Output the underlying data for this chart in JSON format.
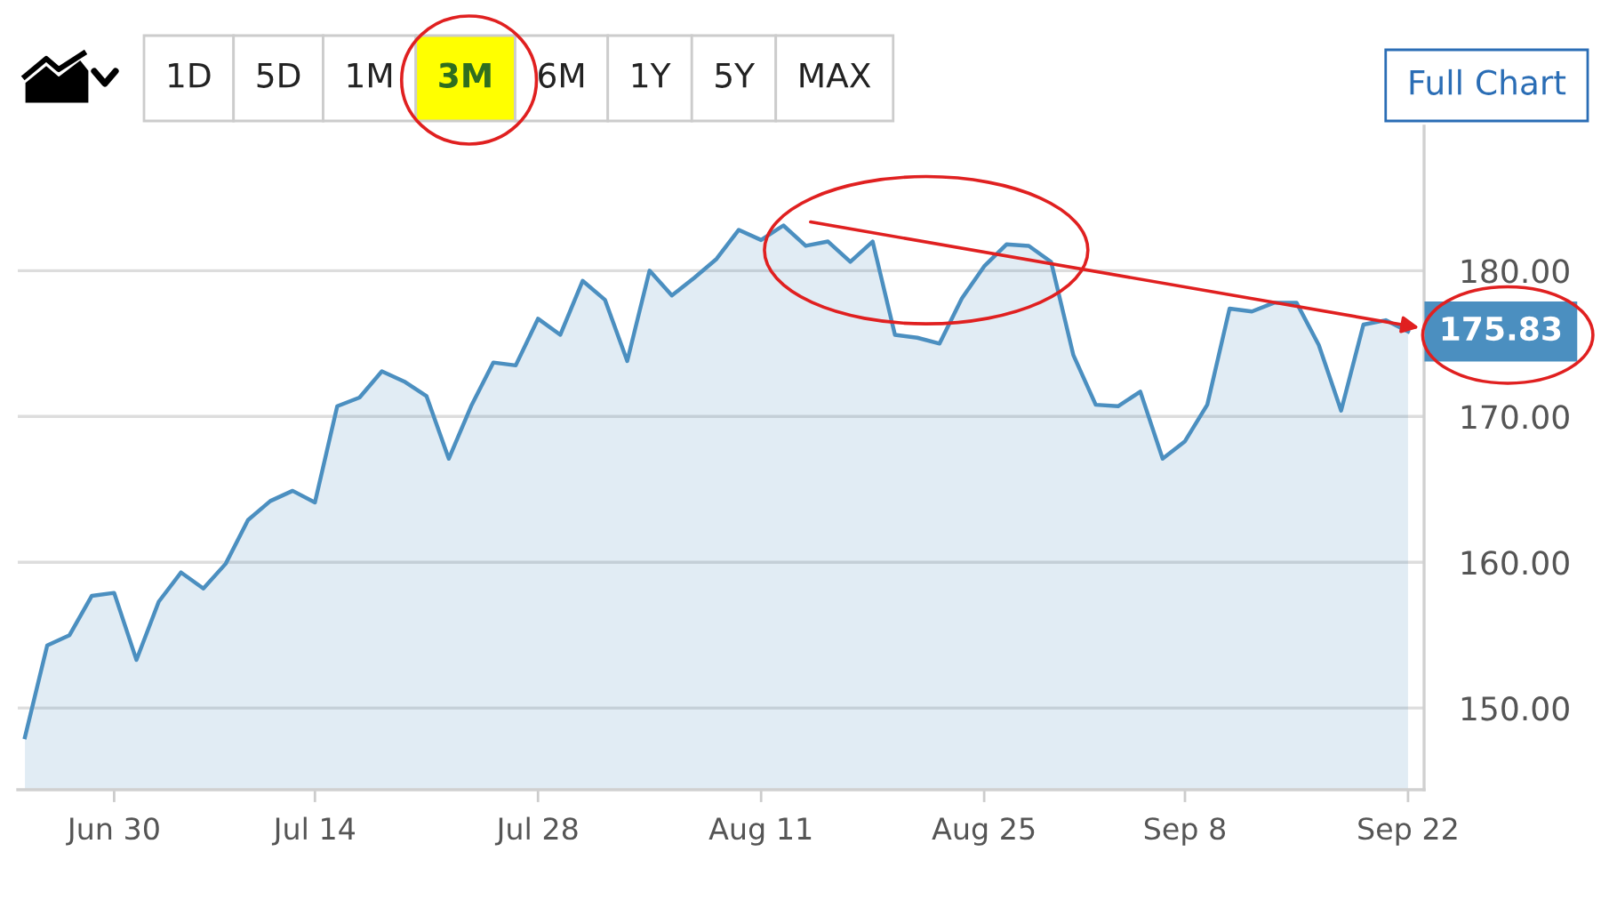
{
  "chart_data": {
    "type": "area",
    "categories": [
      null,
      null,
      null,
      null,
      "Jun 30",
      null,
      null,
      null,
      null,
      null,
      null,
      null,
      null,
      "Jul 14",
      null,
      null,
      null,
      null,
      null,
      null,
      null,
      null,
      null,
      "Jul 28",
      null,
      null,
      null,
      null,
      null,
      null,
      null,
      null,
      null,
      "Aug 11",
      null,
      null,
      null,
      null,
      null,
      null,
      null,
      null,
      null,
      "Aug 25",
      null,
      null,
      null,
      null,
      null,
      null,
      null,
      null,
      "Sep 8",
      null,
      null,
      null,
      null,
      null,
      null,
      null,
      null,
      null,
      "Sep 22"
    ],
    "values": [
      148.0,
      154.3,
      155.0,
      157.7,
      157.9,
      153.3,
      157.3,
      159.3,
      158.2,
      159.9,
      162.9,
      164.2,
      164.9,
      164.1,
      170.7,
      171.3,
      173.1,
      172.4,
      171.4,
      167.1,
      170.7,
      173.7,
      173.5,
      176.7,
      175.6,
      179.3,
      178.0,
      173.8,
      180.0,
      178.3,
      179.5,
      180.8,
      182.8,
      182.1,
      183.1,
      181.7,
      182.0,
      180.6,
      182.0,
      175.6,
      175.4,
      175.0,
      178.1,
      180.3,
      181.8,
      181.7,
      180.6,
      174.2,
      170.8,
      170.7,
      171.7,
      167.1,
      168.3,
      170.8,
      177.4,
      177.2,
      177.8,
      177.8,
      174.9,
      170.4,
      176.3,
      176.6,
      175.83
    ],
    "value_labels": [
      null,
      null,
      null,
      null,
      null,
      null,
      null,
      null,
      null,
      null,
      null,
      null,
      null,
      null,
      null,
      null,
      null,
      null,
      null,
      null,
      null,
      null,
      null,
      null,
      null,
      null,
      null,
      null,
      null,
      null,
      null,
      null,
      null,
      null,
      null,
      null,
      null,
      null,
      null,
      null,
      null,
      null,
      null,
      null,
      null,
      null,
      null,
      null,
      null,
      null,
      null,
      null,
      null,
      null,
      null,
      null,
      null,
      null,
      null,
      null,
      null,
      null,
      "175.83"
    ],
    "color": "#4b8fc0",
    "ylim": [
      144.4,
      189.9
    ],
    "yticks": [
      {
        "value": 150,
        "label": "150.00"
      },
      {
        "value": 160,
        "label": "160.00"
      },
      {
        "value": 170,
        "label": "170.00"
      },
      {
        "value": 180,
        "label": "180.00"
      }
    ],
    "grid": "y",
    "annotations": [
      "1D",
      "5D",
      "1M",
      "3M",
      "6M",
      "1Y",
      "5Y",
      "MAX",
      "Full Chart"
    ]
  }
}
